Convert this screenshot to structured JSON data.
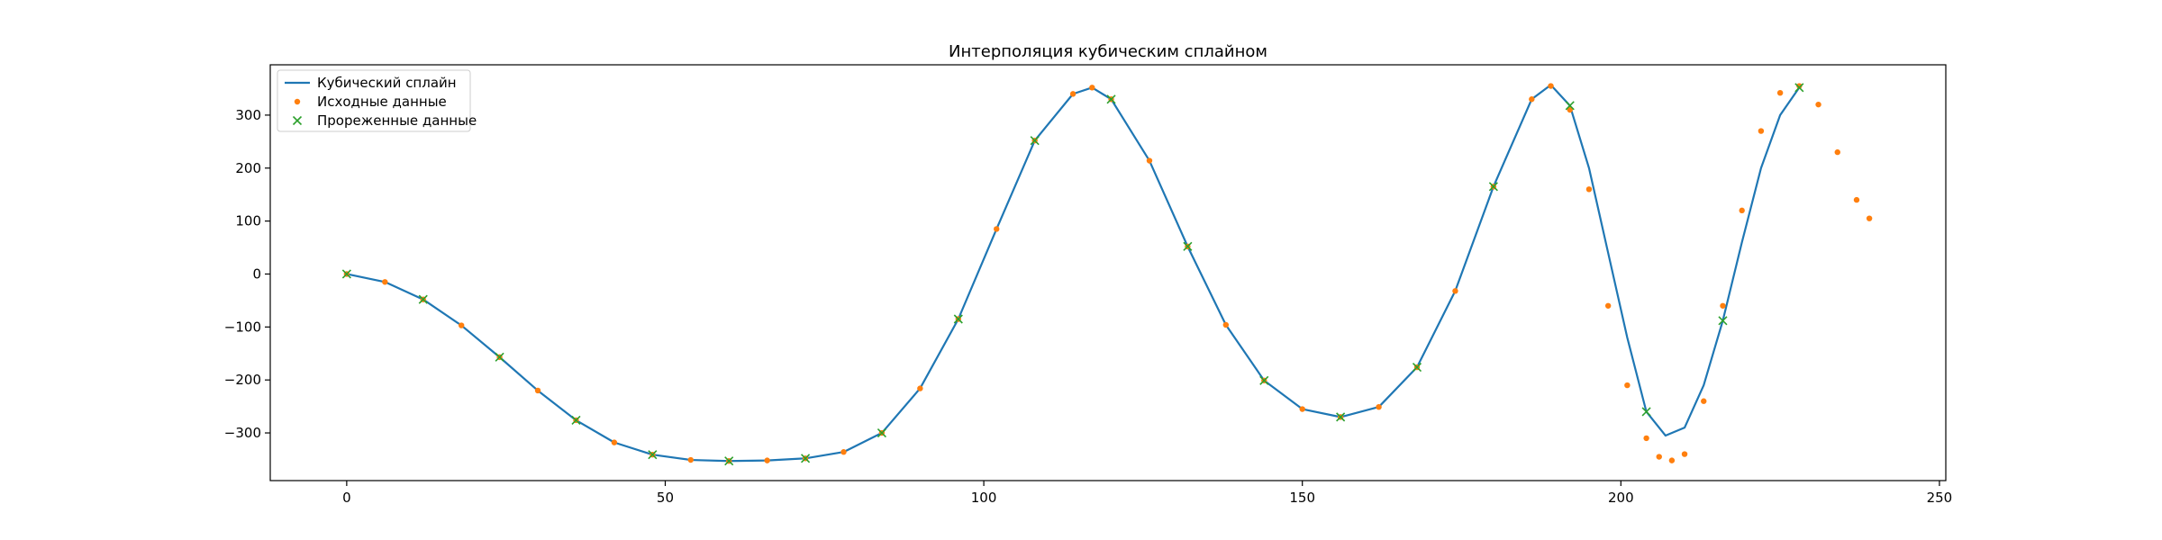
{
  "chart_data": {
    "type": "line",
    "title": "Интерполяция кубическим сплайном",
    "xlabel": "",
    "ylabel": "",
    "xlim": [
      -12,
      251
    ],
    "ylim": [
      -390,
      395
    ],
    "x_ticks": [
      0,
      50,
      100,
      150,
      200,
      250
    ],
    "y_ticks": [
      -300,
      -200,
      -100,
      0,
      100,
      200,
      300
    ],
    "x_tick_labels": [
      "0",
      "50",
      "100",
      "150",
      "200",
      "250"
    ],
    "y_tick_labels": [
      "−300",
      "−200",
      "−100",
      "0",
      "100",
      "200",
      "300"
    ],
    "grid": false,
    "legend_position": "upper-left",
    "series": [
      {
        "name": "Кубический сплайн",
        "style": "line",
        "color": "#1f77b4",
        "x": [
          0,
          6,
          12,
          18,
          24,
          30,
          36,
          42,
          48,
          54,
          60,
          66,
          72,
          78,
          84,
          90,
          96,
          102,
          108,
          114,
          117,
          120,
          126,
          132,
          138,
          144,
          150,
          156,
          162,
          168,
          174,
          180,
          186,
          189,
          192,
          195,
          198,
          201,
          204,
          207,
          210,
          213,
          216,
          219,
          222,
          225,
          228
        ],
        "y": [
          0,
          -15,
          -48,
          -97,
          -157,
          -220,
          -276,
          -318,
          -341,
          -351,
          -353,
          -352,
          -348,
          -336,
          -300,
          -216,
          -85,
          85,
          252,
          340,
          352,
          330,
          214,
          52,
          -96,
          -201,
          -255,
          -270,
          -251,
          -176,
          -32,
          165,
          330,
          357,
          318,
          200,
          40,
          -120,
          -260,
          -305,
          -290,
          -210,
          -88,
          60,
          200,
          300,
          352
        ]
      },
      {
        "name": "Исходные данные",
        "style": "points",
        "color": "#ff7f0e",
        "x": [
          0,
          6,
          12,
          18,
          24,
          30,
          36,
          42,
          48,
          54,
          60,
          66,
          72,
          78,
          84,
          90,
          96,
          102,
          108,
          114,
          117,
          120,
          126,
          132,
          138,
          144,
          150,
          156,
          162,
          168,
          174,
          180,
          186,
          189,
          192,
          195,
          198,
          201,
          204,
          206,
          208,
          210,
          213,
          216,
          219,
          222,
          225,
          228,
          231,
          234,
          237,
          239
        ],
        "y": [
          0,
          -15,
          -48,
          -97,
          -157,
          -220,
          -276,
          -318,
          -341,
          -351,
          -353,
          -352,
          -348,
          -336,
          -300,
          -216,
          -85,
          85,
          252,
          340,
          352,
          330,
          214,
          52,
          -96,
          -201,
          -255,
          -270,
          -251,
          -176,
          -32,
          165,
          330,
          355,
          310,
          160,
          -60,
          -210,
          -310,
          -345,
          -352,
          -340,
          -240,
          -60,
          120,
          270,
          342,
          355,
          320,
          230,
          140,
          105
        ]
      },
      {
        "name": "Прореженные данные",
        "style": "x-markers",
        "color": "#2ca02c",
        "x": [
          0,
          12,
          24,
          36,
          48,
          60,
          72,
          84,
          96,
          108,
          120,
          132,
          144,
          156,
          168,
          180,
          192,
          204,
          216,
          228
        ],
        "y": [
          0,
          -48,
          -157,
          -276,
          -341,
          -353,
          -348,
          -300,
          -85,
          252,
          330,
          52,
          -201,
          -270,
          -176,
          165,
          318,
          -260,
          -88,
          352
        ]
      }
    ]
  }
}
